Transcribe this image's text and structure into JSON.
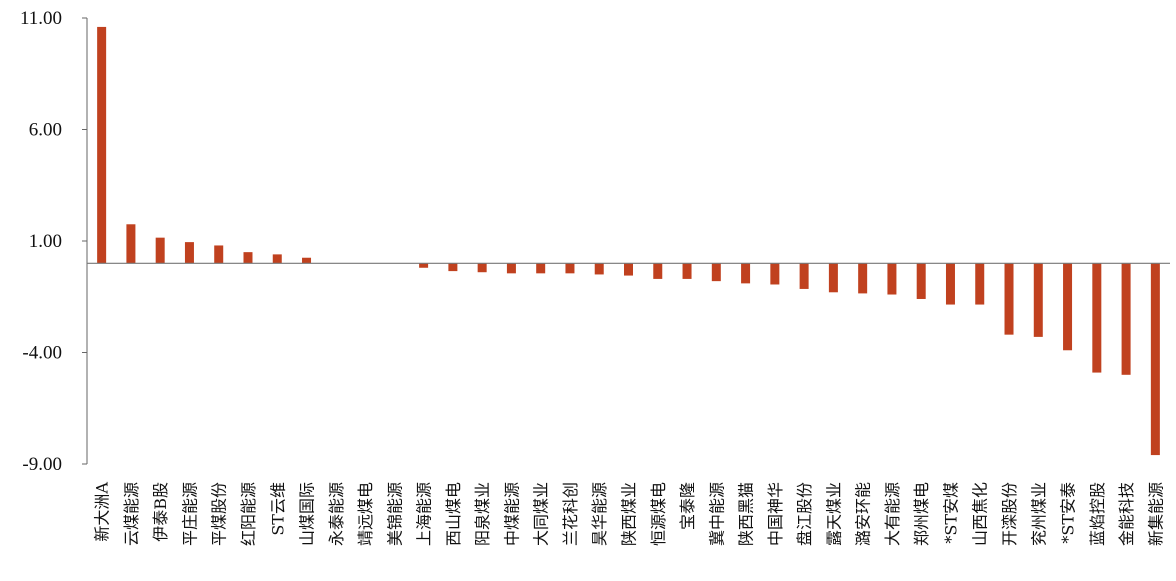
{
  "chart_data": {
    "type": "bar",
    "title": "",
    "xlabel": "",
    "ylabel": "",
    "ylim": [
      -9,
      11
    ],
    "yticks": [
      "11.00",
      "6.00",
      "1.00",
      "-4.00",
      "-9.00"
    ],
    "ytick_values": [
      11,
      6,
      1,
      -4,
      -9
    ],
    "grid": false,
    "legend": "none",
    "bar_color": "#C0411F",
    "categories": [
      "新大洲A",
      "云煤能源",
      "伊泰B股",
      "平庄能源",
      "平煤股份",
      "红阳能源",
      "ST云维",
      "山煤国际",
      "永泰能源",
      "靖远煤电",
      "美锦能源",
      "上海能源",
      "西山煤电",
      "阳泉煤业",
      "中煤能源",
      "大同煤业",
      "兰花科创",
      "昊华能源",
      "陕西煤业",
      "恒源煤电",
      "宝泰隆",
      "冀中能源",
      "陕西黑猫",
      "中国神华",
      "盘江股份",
      "露天煤业",
      "潞安环能",
      "大有能源",
      "郑州煤电",
      "*ST安煤",
      "山西焦化",
      "开滦股份",
      "兖州煤业",
      "*ST安泰",
      "蓝焰控股",
      "金能科技",
      "新集能源"
    ],
    "values": [
      10.6,
      1.75,
      1.15,
      0.95,
      0.8,
      0.5,
      0.4,
      0.25,
      0.0,
      0.0,
      0.0,
      -0.2,
      -0.35,
      -0.4,
      -0.45,
      -0.45,
      -0.45,
      -0.5,
      -0.55,
      -0.7,
      -0.7,
      -0.8,
      -0.9,
      -0.95,
      -1.15,
      -1.3,
      -1.35,
      -1.4,
      -1.6,
      -1.85,
      -1.85,
      -3.2,
      -3.3,
      -3.9,
      -4.9,
      -5.0,
      -8.6
    ]
  }
}
